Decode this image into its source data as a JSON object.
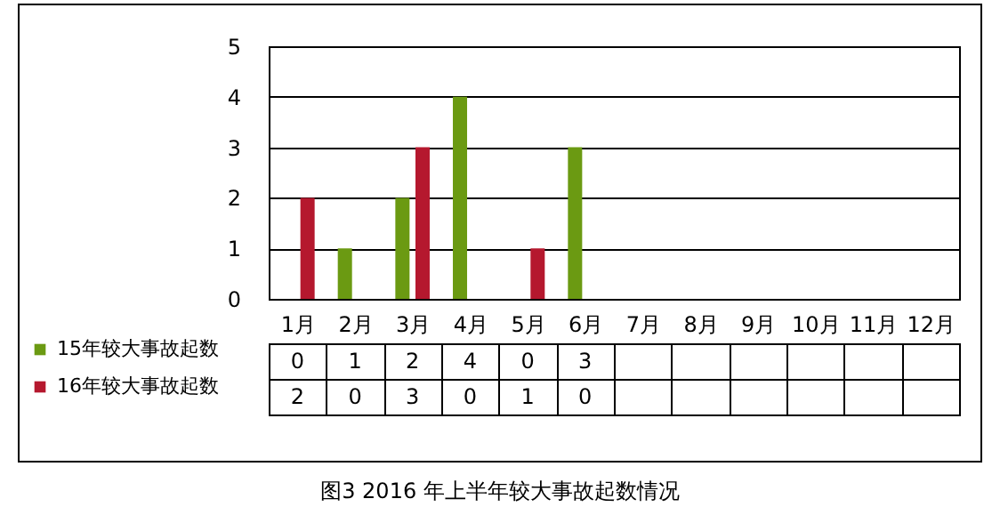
{
  "chart_data": {
    "type": "bar",
    "title": "图3  2016 年上半年较大事故起数情况",
    "categories": [
      "1月",
      "2月",
      "3月",
      "4月",
      "5月",
      "6月",
      "7月",
      "8月",
      "9月",
      "10月",
      "11月",
      "12月"
    ],
    "series": [
      {
        "name": "15年较大事故起数",
        "color": "#6b9a12",
        "values": [
          0,
          1,
          2,
          4,
          0,
          3,
          null,
          null,
          null,
          null,
          null,
          null
        ]
      },
      {
        "name": "16年较大事故起数",
        "color": "#b5182e",
        "values": [
          2,
          0,
          3,
          0,
          1,
          0,
          null,
          null,
          null,
          null,
          null,
          null
        ]
      }
    ],
    "ylim": [
      0,
      5
    ],
    "yticks": [
      0,
      1,
      2,
      3,
      4,
      5
    ],
    "grid": "y",
    "legend": "bottom left",
    "data_labels": true
  }
}
